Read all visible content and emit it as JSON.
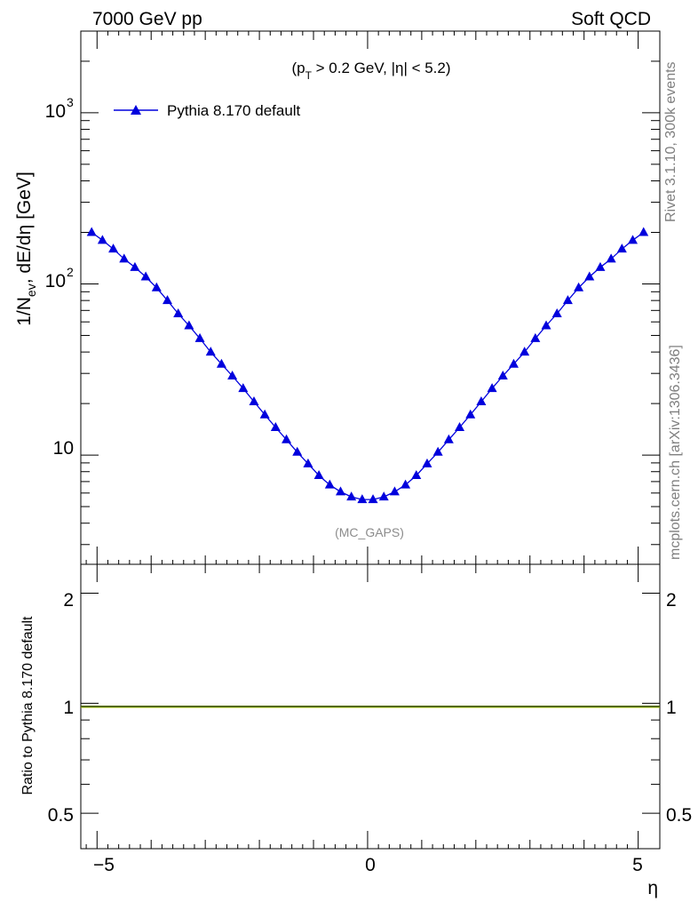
{
  "header": {
    "left": "7000 GeV pp",
    "right": "Soft QCD"
  },
  "side_labels": {
    "rivet": "Rivet 3.1.10,  300k events",
    "source": "mcplots.cern.ch [arXiv:1306.3436]"
  },
  "main_plot": {
    "ylabel_main": "1/N",
    "ylabel_sub": "ev",
    "ylabel_rest": ", dE/dη [GeV]",
    "cut_open": "(p",
    "cut_sub": "T",
    "cut_rest": " > 0.2 GeV, |η| < 5.2)",
    "analysis": "(MC_GAPS)",
    "ytick_labels": {
      "t10": "10",
      "t100_base": "10",
      "t100_exp": "2",
      "t1000_base": "10",
      "t1000_exp": "3"
    }
  },
  "ratio_plot": {
    "ylabel": "Ratio to Pythia 8.170 default",
    "ytick_labels": [
      "0.5",
      "1",
      "2"
    ]
  },
  "x_axis": {
    "label": "η",
    "tick_labels": [
      "−5",
      "0",
      "5"
    ]
  },
  "colors": {
    "series": "#0000dd",
    "ratio_band": "#a8d400"
  },
  "chart_data": [
    {
      "type": "line",
      "yscale": "log",
      "xlim": [
        -5.3,
        5.4
      ],
      "ylim": [
        2.3,
        3000
      ],
      "xlabel": "η",
      "ylabel": "1/N_ev, dE/dη [GeV]",
      "legend_position": "top-left",
      "series": [
        {
          "name": "Pythia 8.170 default",
          "marker": "triangle",
          "x": [
            -5.1,
            -4.9,
            -4.7,
            -4.5,
            -4.3,
            -4.1,
            -3.9,
            -3.7,
            -3.5,
            -3.3,
            -3.1,
            -2.9,
            -2.7,
            -2.5,
            -2.3,
            -2.1,
            -1.9,
            -1.7,
            -1.5,
            -1.3,
            -1.1,
            -0.9,
            -0.7,
            -0.5,
            -0.3,
            -0.1,
            0.1,
            0.3,
            0.5,
            0.7,
            0.9,
            1.1,
            1.3,
            1.5,
            1.7,
            1.9,
            2.1,
            2.3,
            2.5,
            2.7,
            2.9,
            3.1,
            3.3,
            3.5,
            3.7,
            3.9,
            4.1,
            4.3,
            4.5,
            4.7,
            4.9,
            5.1
          ],
          "y": [
            200,
            180,
            160,
            140,
            125,
            110,
            95,
            80,
            67,
            57,
            48,
            40,
            34,
            29,
            24.5,
            20.5,
            17.2,
            14.5,
            12.3,
            10.4,
            8.9,
            7.6,
            6.7,
            6.1,
            5.7,
            5.5,
            5.5,
            5.7,
            6.1,
            6.7,
            7.6,
            8.9,
            10.4,
            12.3,
            14.5,
            17.2,
            20.5,
            24.5,
            29,
            34,
            40,
            48,
            57,
            67,
            80,
            95,
            110,
            125,
            140,
            160,
            180,
            200
          ]
        }
      ]
    },
    {
      "type": "line",
      "yscale": "log",
      "xlim": [
        -5.3,
        5.4
      ],
      "ylim": [
        0.4,
        2.4
      ],
      "xlabel": "η",
      "ylabel": "Ratio to Pythia 8.170 default",
      "series": [
        {
          "x": [
            -5.3,
            5.4
          ],
          "y": [
            1,
            1
          ]
        }
      ]
    }
  ]
}
